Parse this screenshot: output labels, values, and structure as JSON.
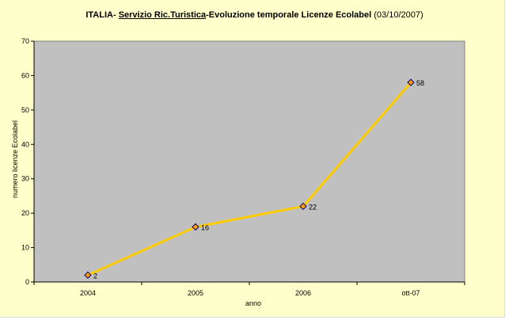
{
  "title": {
    "part1": "ITALIA- ",
    "part2": "Servizio Ric.Turistica",
    "part3": "-Evoluzione temporale Licenze Ecolabel",
    "part4": " (03/10/2007)"
  },
  "chart_data": {
    "type": "line",
    "title": "ITALIA- Servizio Ric.Turistica-Evoluzione temporale Licenze Ecolabel (03/10/2007)",
    "xlabel": "anno",
    "ylabel": "numero licenze Ecolabel",
    "categories": [
      "2004",
      "2005",
      "2006",
      "ott-07"
    ],
    "series": [
      {
        "values": [
          2,
          16,
          22,
          58
        ],
        "data_labels": [
          "2",
          "16",
          "22",
          "58"
        ]
      }
    ],
    "ylim": [
      0,
      70
    ],
    "yticks": [
      0,
      10,
      20,
      30,
      40,
      50,
      60,
      70
    ],
    "grid": false,
    "legend": "none",
    "colors": {
      "background": "#FFFFCC",
      "plot_area": "#C0C0C0",
      "line": "#FFCC00",
      "marker_fill": "#FF9900",
      "marker_border": "#000080"
    }
  }
}
